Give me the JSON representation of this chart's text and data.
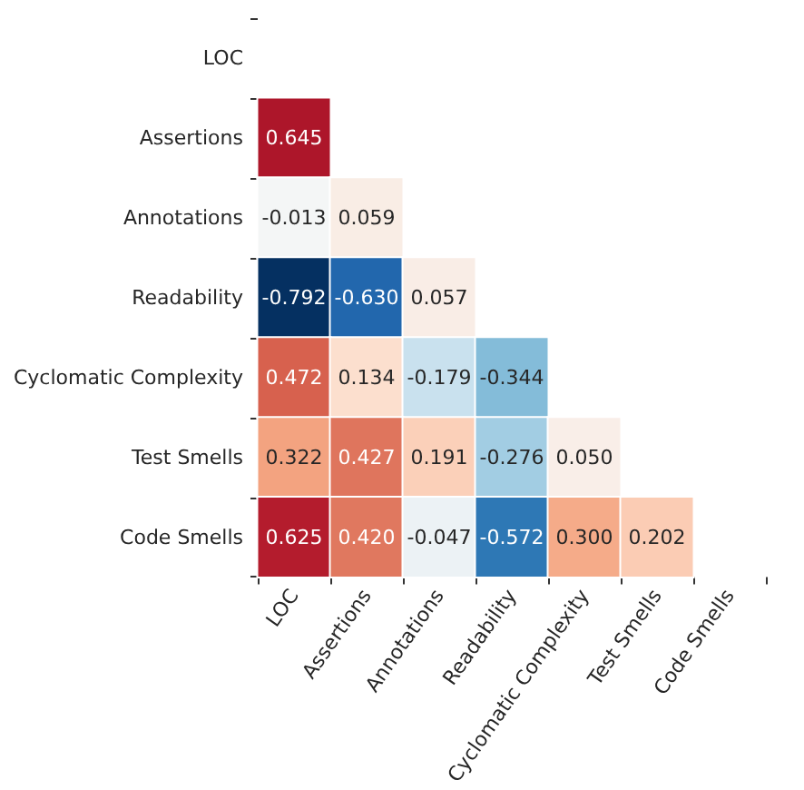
{
  "chart_data": {
    "type": "heatmap",
    "categories": [
      "LOC",
      "Assertions",
      "Annotations",
      "Readability",
      "Cyclomatic Complexity",
      "Test Smells",
      "Code Smells"
    ],
    "y_categories": [
      "LOC",
      "Assertions",
      "Annotations",
      "Readability",
      "Cyclomatic Complexity",
      "Test Smells",
      "Code Smells"
    ],
    "cells": [
      [
        null,
        null,
        null,
        null,
        null,
        null,
        null
      ],
      [
        0.645,
        null,
        null,
        null,
        null,
        null,
        null
      ],
      [
        -0.013,
        0.059,
        null,
        null,
        null,
        null,
        null
      ],
      [
        -0.792,
        -0.63,
        0.057,
        null,
        null,
        null,
        null
      ],
      [
        0.472,
        0.134,
        -0.179,
        -0.344,
        null,
        null,
        null
      ],
      [
        0.322,
        0.427,
        0.191,
        -0.276,
        0.05,
        null,
        null
      ],
      [
        0.625,
        0.42,
        -0.047,
        -0.572,
        0.3,
        0.202,
        null
      ]
    ],
    "cell_labels": [
      [
        null,
        null,
        null,
        null,
        null,
        null,
        null
      ],
      [
        "0.645",
        null,
        null,
        null,
        null,
        null,
        null
      ],
      [
        "-0.013",
        "0.059",
        null,
        null,
        null,
        null,
        null
      ],
      [
        "-0.792",
        "-0.630",
        "0.057",
        null,
        null,
        null,
        null
      ],
      [
        "0.472",
        "0.134",
        "-0.179",
        "-0.344",
        null,
        null,
        null
      ],
      [
        "0.322",
        "0.427",
        "0.191",
        "-0.276",
        "0.050",
        null,
        null
      ],
      [
        "0.625",
        "0.420",
        "-0.047",
        "-0.572",
        "0.300",
        "0.202",
        null
      ]
    ]
  }
}
